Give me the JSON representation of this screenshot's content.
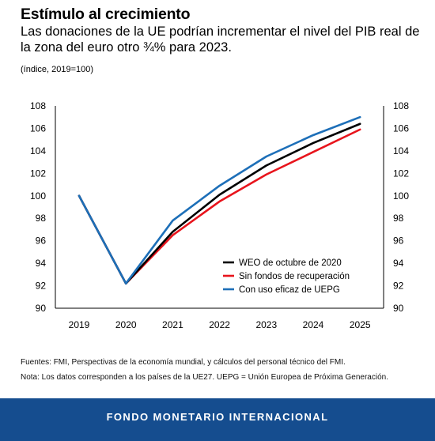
{
  "header": {
    "title": "Estímulo al crecimiento",
    "subtitle": "Las donaciones de la UE podrían incrementar el nivel del PIB real de la zona del euro otro ¾% para 2023.",
    "unit": "(índice, 2019=100)"
  },
  "chart_data": {
    "type": "line",
    "x": [
      "2019",
      "2020",
      "2021",
      "2022",
      "2023",
      "2024",
      "2025"
    ],
    "ylim": [
      90,
      108
    ],
    "yticks": [
      90,
      92,
      94,
      96,
      98,
      100,
      102,
      104,
      106,
      108
    ],
    "grid": false,
    "legend_position": "bottom-right",
    "series": [
      {
        "name": "WEO de octubre de 2020",
        "color": "#000000",
        "values": [
          100,
          92.2,
          96.8,
          100.1,
          102.7,
          104.7,
          106.4
        ]
      },
      {
        "name": "Sin fondos de recuperación",
        "color": "#e8141c",
        "values": [
          100,
          92.2,
          96.5,
          99.5,
          101.9,
          103.9,
          105.9
        ]
      },
      {
        "name": "Con uso eficaz de UEPG",
        "color": "#1d6fb8",
        "values": [
          100,
          92.2,
          97.8,
          100.9,
          103.5,
          105.4,
          107.0
        ]
      }
    ]
  },
  "notes": {
    "sources": "Fuentes: FMI, Perspectivas de la economía mundial, y cálculos del personal técnico del FMI.",
    "note": "Nota: Los datos corresponden a los países de la UE27. UEPG = Unión Europea de Próxima Generación."
  },
  "footer": {
    "label": "FONDO MONETARIO INTERNACIONAL"
  }
}
